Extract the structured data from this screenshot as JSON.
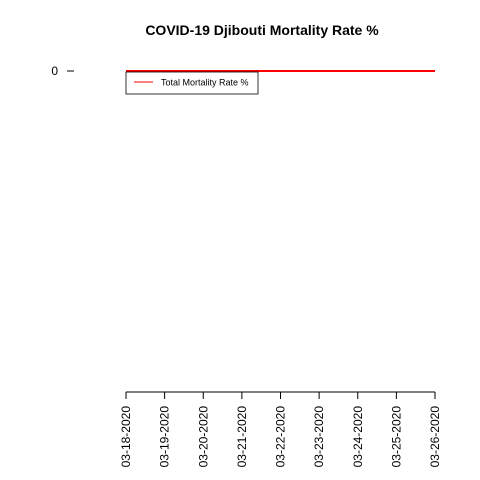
{
  "chart_data": {
    "type": "line",
    "title": "COVID-19 Djibouti Mortality Rate %",
    "xlabel": "",
    "ylabel": "",
    "x": [
      "03-18-2020",
      "03-19-2020",
      "03-20-2020",
      "03-21-2020",
      "03-22-2020",
      "03-23-2020",
      "03-24-2020",
      "03-25-2020",
      "03-26-2020"
    ],
    "series": [
      {
        "name": "Total Mortality Rate %",
        "color": "#ff0000",
        "values": [
          0,
          0,
          0,
          0,
          0,
          0,
          0,
          0,
          0
        ]
      }
    ],
    "y_ticks": [
      "0"
    ],
    "grid": false,
    "legend_position": "top-left"
  }
}
